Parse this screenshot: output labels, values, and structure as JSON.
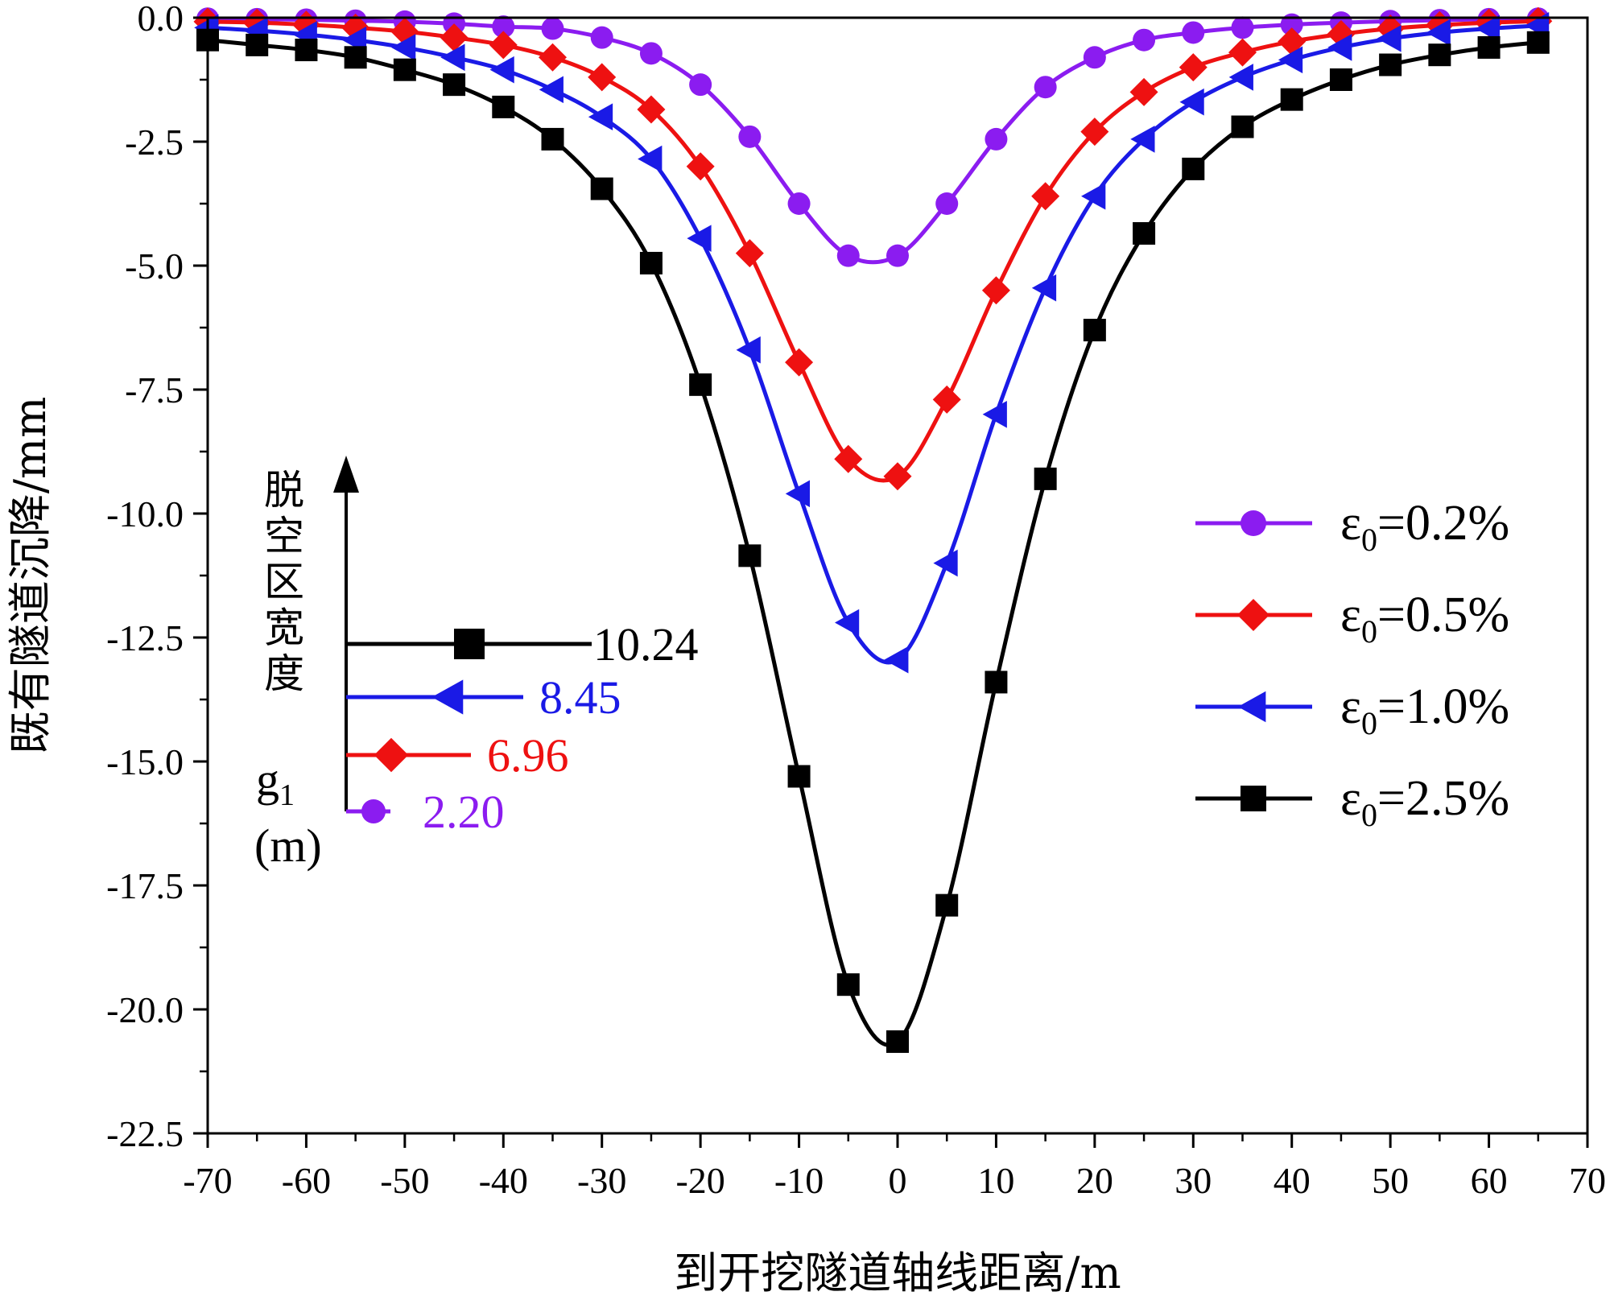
{
  "chart_data": {
    "type": "line",
    "xlabel": "到开挖隧道轴线距离/m",
    "ylabel": "既有隧道沉降/mm",
    "xlim": [
      -70,
      70
    ],
    "ylim": [
      -22.5,
      0
    ],
    "x_ticks": [
      "-70",
      "-60",
      "-50",
      "-40",
      "-30",
      "-20",
      "-10",
      "0",
      "10",
      "20",
      "30",
      "40",
      "50",
      "60",
      "70"
    ],
    "y_ticks": [
      "0.0",
      "-2.5",
      "-5.0",
      "-7.5",
      "-10.0",
      "-12.5",
      "-15.0",
      "-17.5",
      "-20.0",
      "-22.5"
    ],
    "legend_position": "right",
    "series": [
      {
        "name": "ε0=0.2%",
        "name_base": "ε",
        "name_sub": "0",
        "name_rest": "=0.2%",
        "color": "#8b1cf0",
        "marker": "circle",
        "x": [
          -70,
          -65,
          -60,
          -55,
          -50,
          -45,
          -40,
          -35,
          -30,
          -25,
          -20,
          -15,
          -10,
          -5,
          0,
          5,
          10,
          15,
          20,
          25,
          30,
          35,
          40,
          45,
          50,
          55,
          60,
          65
        ],
        "y": [
          -0.02,
          -0.03,
          -0.04,
          -0.06,
          -0.08,
          -0.12,
          -0.18,
          -0.22,
          -0.4,
          -0.72,
          -1.35,
          -2.4,
          -3.75,
          -4.8,
          -4.8,
          -3.75,
          -2.45,
          -1.4,
          -0.8,
          -0.45,
          -0.3,
          -0.2,
          -0.14,
          -0.1,
          -0.07,
          -0.05,
          -0.03,
          -0.02
        ]
      },
      {
        "name": "ε0=0.5%",
        "name_base": "ε",
        "name_sub": "0",
        "name_rest": "=0.5%",
        "color": "#ee1111",
        "marker": "diamond",
        "x": [
          -70,
          -65,
          -60,
          -55,
          -50,
          -45,
          -40,
          -35,
          -30,
          -25,
          -20,
          -15,
          -10,
          -5,
          0,
          5,
          10,
          15,
          20,
          25,
          30,
          35,
          40,
          45,
          50,
          55,
          60,
          65
        ],
        "y": [
          -0.08,
          -0.1,
          -0.14,
          -0.2,
          -0.28,
          -0.4,
          -0.55,
          -0.8,
          -1.2,
          -1.85,
          -3.0,
          -4.75,
          -6.95,
          -8.9,
          -9.25,
          -7.7,
          -5.5,
          -3.6,
          -2.3,
          -1.5,
          -1.0,
          -0.7,
          -0.48,
          -0.33,
          -0.22,
          -0.15,
          -0.1,
          -0.07
        ]
      },
      {
        "name": "ε0=1.0%",
        "name_base": "ε",
        "name_sub": "0",
        "name_rest": "=1.0%",
        "color": "#1a1ae6",
        "marker": "triangle-left",
        "x": [
          -70,
          -65,
          -60,
          -55,
          -50,
          -45,
          -40,
          -35,
          -30,
          -25,
          -20,
          -15,
          -10,
          -5,
          0,
          5,
          10,
          15,
          20,
          25,
          30,
          35,
          40,
          45,
          50,
          55,
          60,
          65
        ],
        "y": [
          -0.2,
          -0.26,
          -0.34,
          -0.45,
          -0.6,
          -0.8,
          -1.05,
          -1.45,
          -2.0,
          -2.85,
          -4.45,
          -6.7,
          -9.6,
          -12.2,
          -12.95,
          -11.0,
          -8.0,
          -5.45,
          -3.6,
          -2.45,
          -1.7,
          -1.2,
          -0.85,
          -0.6,
          -0.42,
          -0.3,
          -0.22,
          -0.16
        ]
      },
      {
        "name": "ε0=2.5%",
        "name_base": "ε",
        "name_sub": "0",
        "name_rest": "=2.5%",
        "color": "#000000",
        "marker": "square",
        "x": [
          -70,
          -65,
          -60,
          -55,
          -50,
          -45,
          -40,
          -35,
          -30,
          -25,
          -20,
          -15,
          -10,
          -5,
          0,
          5,
          10,
          15,
          20,
          25,
          30,
          35,
          40,
          45,
          50,
          55,
          60,
          65
        ],
        "y": [
          -0.45,
          -0.55,
          -0.65,
          -0.8,
          -1.05,
          -1.35,
          -1.8,
          -2.45,
          -3.45,
          -4.95,
          -7.4,
          -10.85,
          -15.3,
          -19.5,
          -20.65,
          -17.9,
          -13.4,
          -9.3,
          -6.3,
          -4.35,
          -3.05,
          -2.2,
          -1.65,
          -1.25,
          -0.95,
          -0.75,
          -0.6,
          -0.5
        ]
      }
    ],
    "inset": {
      "title_chars": [
        "脱",
        "空",
        "区",
        "宽",
        "度"
      ],
      "symbol_base": "g",
      "symbol_sub": "1",
      "unit": "(m)",
      "entries": [
        {
          "value": "10.24",
          "color": "#000000",
          "marker": "square"
        },
        {
          "value": "8.45",
          "color": "#1a1ae6",
          "marker": "triangle-left"
        },
        {
          "value": "6.96",
          "color": "#ee1111",
          "marker": "diamond"
        },
        {
          "value": "2.20",
          "color": "#8b1cf0",
          "marker": "circle"
        }
      ]
    }
  }
}
